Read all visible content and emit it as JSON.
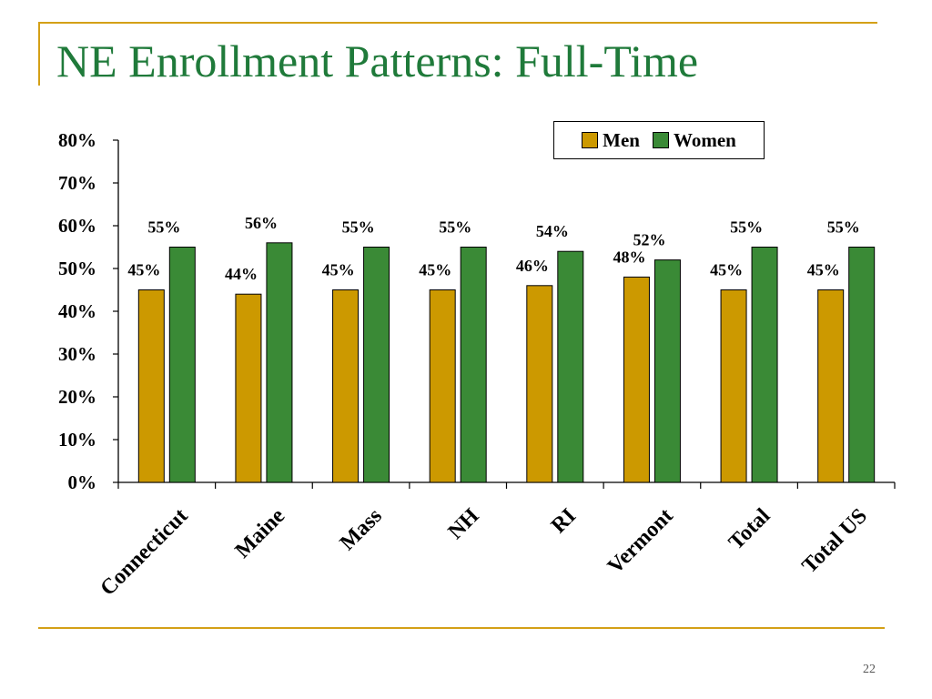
{
  "slide": {
    "title": "NE Enrollment Patterns:  Full-Time",
    "number": "22"
  },
  "colors": {
    "accent_rule": "#D4A017",
    "title": "#1F7A3A",
    "men": "#CC9900",
    "women": "#3A8A36"
  },
  "chart_data": {
    "type": "bar",
    "categories": [
      "Connecticut",
      "Maine",
      "Mass",
      "NH",
      "RI",
      "Vermont",
      "Total",
      "Total US"
    ],
    "series": [
      {
        "name": "Men",
        "values": [
          45,
          44,
          45,
          45,
          46,
          48,
          45,
          45
        ],
        "labels": [
          "45%",
          "44%",
          "45%",
          "45%",
          "46%",
          "48%",
          "45%",
          "45%"
        ]
      },
      {
        "name": "Women",
        "values": [
          55,
          56,
          55,
          55,
          54,
          52,
          55,
          55
        ],
        "labels": [
          "55%",
          "56%",
          "55%",
          "55%",
          "54%",
          "52%",
          "55%",
          "55%"
        ]
      }
    ],
    "ylim": [
      0,
      80
    ],
    "yticks": [
      "0%",
      "10%",
      "20%",
      "30%",
      "40%",
      "50%",
      "60%",
      "70%",
      "80%"
    ],
    "legend_position": "top-right",
    "grid": false
  }
}
